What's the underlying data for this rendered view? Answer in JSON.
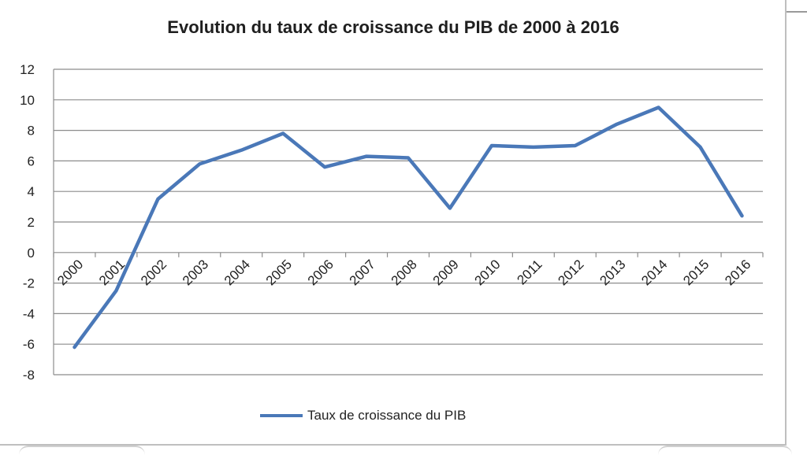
{
  "chart_data": {
    "type": "line",
    "title": "Evolution du taux de croissance du PIB de 2000 à 2016",
    "xlabel": "",
    "ylabel": "",
    "categories": [
      "2000",
      "2001",
      "2002",
      "2003",
      "2004",
      "2005",
      "2006",
      "2007",
      "2008",
      "2009",
      "2010",
      "2011",
      "2012",
      "2013",
      "2014",
      "2015",
      "2016"
    ],
    "series": [
      {
        "name": "Taux de croissance du PIB",
        "color": "#4a78b8",
        "values": [
          -6.2,
          -2.5,
          3.5,
          5.8,
          6.7,
          7.8,
          5.6,
          6.3,
          6.2,
          2.9,
          7.0,
          6.9,
          7.0,
          8.4,
          9.5,
          6.9,
          2.4
        ]
      }
    ],
    "ylim": [
      -8,
      12
    ],
    "yticks": [
      -8,
      -6,
      -4,
      -2,
      0,
      2,
      4,
      6,
      8,
      10,
      12
    ],
    "grid": true,
    "legend_position": "bottom"
  }
}
